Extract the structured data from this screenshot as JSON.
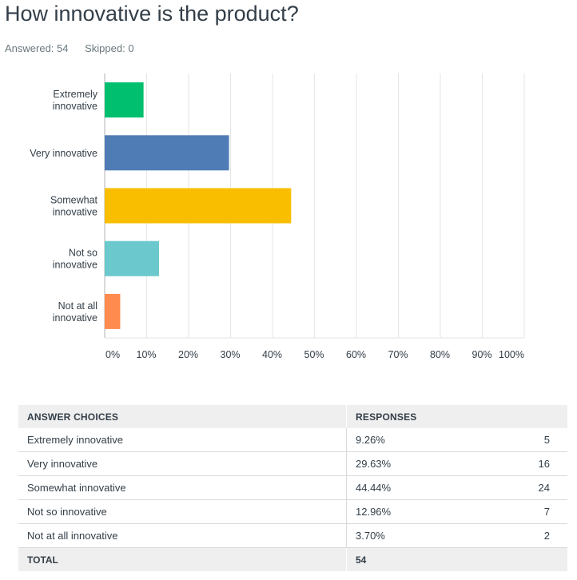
{
  "question": {
    "title": "How innovative is the product?",
    "answered_label": "Answered: 54",
    "skipped_label": "Skipped: 0"
  },
  "chart_data": {
    "type": "bar",
    "orientation": "horizontal",
    "categories": [
      [
        "Extremely",
        "innovative"
      ],
      [
        "Very innovative"
      ],
      [
        "Somewhat",
        "innovative"
      ],
      [
        "Not so",
        "innovative"
      ],
      [
        "Not at all",
        "innovative"
      ]
    ],
    "values": [
      9.26,
      29.63,
      44.44,
      12.96,
      3.7
    ],
    "colors": [
      "#00bf6f",
      "#507cb6",
      "#f9be00",
      "#6bc8cd",
      "#ff8b4f"
    ],
    "xlim": [
      0,
      100
    ],
    "xticks": [
      "0%",
      "10%",
      "20%",
      "30%",
      "40%",
      "50%",
      "60%",
      "70%",
      "80%",
      "90%",
      "100%"
    ],
    "grid": "vertical",
    "xlabel": "",
    "ylabel": ""
  },
  "table": {
    "headers": {
      "choice": "ANSWER CHOICES",
      "responses": "RESPONSES"
    },
    "rows": [
      {
        "choice": "Extremely innovative",
        "percent": "9.26%",
        "count": "5"
      },
      {
        "choice": "Very innovative",
        "percent": "29.63%",
        "count": "16"
      },
      {
        "choice": "Somewhat innovative",
        "percent": "44.44%",
        "count": "24"
      },
      {
        "choice": "Not so innovative",
        "percent": "12.96%",
        "count": "7"
      },
      {
        "choice": "Not at all innovative",
        "percent": "3.70%",
        "count": "2"
      }
    ],
    "total_label": "TOTAL",
    "total_value": "54"
  }
}
